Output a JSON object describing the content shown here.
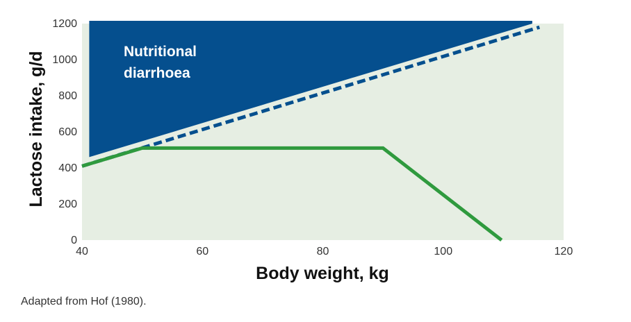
{
  "chart_data": {
    "type": "line",
    "xlabel": "Body weight, kg",
    "ylabel": "Lactose intake, g/d",
    "xlim": [
      40,
      120
    ],
    "ylim": [
      0,
      1200
    ],
    "x_ticks": [
      "40",
      "60",
      "80",
      "100",
      "120"
    ],
    "y_ticks": [
      "0",
      "200",
      "400",
      "600",
      "800",
      "1000",
      "1200"
    ],
    "grid": false,
    "background_color": "#e6eee3",
    "regions": [
      {
        "label_lines": [
          "Nutritional",
          "diarrhoea"
        ],
        "color": "#054f8e",
        "boundary": {
          "x": [
            41.2,
            114.8
          ],
          "y": [
            460,
            1200
          ]
        }
      }
    ],
    "series": [
      {
        "style": "dashed",
        "color": "#054f8e",
        "x": [
          40,
          116
        ],
        "y": [
          410,
          1180
        ]
      },
      {
        "style": "solid",
        "color": "#2f9a3e",
        "x": [
          40,
          50,
          90,
          109.7
        ],
        "y": [
          410,
          510,
          510,
          0
        ]
      }
    ]
  },
  "source_note": "Adapted from Hof (1980)."
}
